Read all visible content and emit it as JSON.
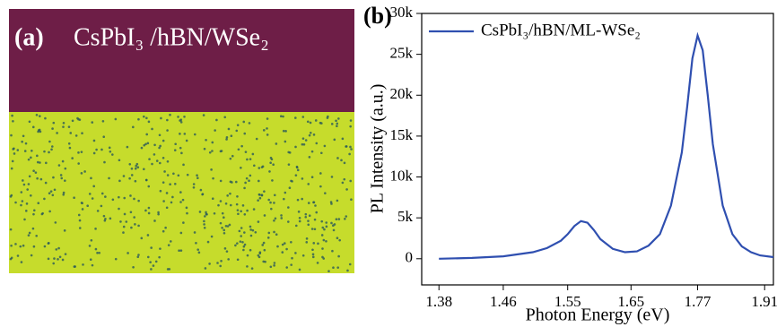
{
  "image_panel": {
    "label": "(a)",
    "caption": "CsPbI₃ /hBN/WSe₂"
  },
  "chart_data": {
    "type": "line",
    "panel_label": "(b)",
    "xlabel": "Photon Energy (eV)",
    "ylabel": "PL Intensity (a.u.)",
    "xscale": "reciprocal",
    "x": [
      1.38,
      1.42,
      1.46,
      1.5,
      1.52,
      1.54,
      1.55,
      1.56,
      1.57,
      1.58,
      1.59,
      1.6,
      1.62,
      1.64,
      1.66,
      1.68,
      1.7,
      1.72,
      1.74,
      1.75,
      1.76,
      1.77,
      1.78,
      1.79,
      1.8,
      1.82,
      1.84,
      1.86,
      1.88,
      1.9,
      1.93
    ],
    "series": [
      {
        "name": "CsPbI₃/hBN/ML-WSe₂",
        "color": "#2f4fb0",
        "values": [
          0,
          100,
          300,
          800,
          1300,
          2200,
          3000,
          4000,
          4600,
          4400,
          3500,
          2400,
          1200,
          800,
          900,
          1600,
          3000,
          6500,
          13000,
          18500,
          24500,
          27300,
          25500,
          20000,
          14000,
          6500,
          3000,
          1500,
          800,
          400,
          200
        ]
      }
    ],
    "xlim": [
      1.36,
      1.93
    ],
    "xticks": [
      1.38,
      1.46,
      1.55,
      1.65,
      1.77,
      1.91
    ],
    "ylim": [
      -3200,
      30000
    ],
    "yticks": [
      0,
      {
        "value": 5000,
        "label": "5k"
      },
      {
        "value": 10000,
        "label": "10k"
      },
      {
        "value": 15000,
        "label": "15k"
      },
      {
        "value": 20000,
        "label": "20k"
      },
      {
        "value": 25000,
        "label": "25k"
      },
      {
        "value": 30000,
        "label": "30k"
      }
    ],
    "legend": "upper-left"
  }
}
